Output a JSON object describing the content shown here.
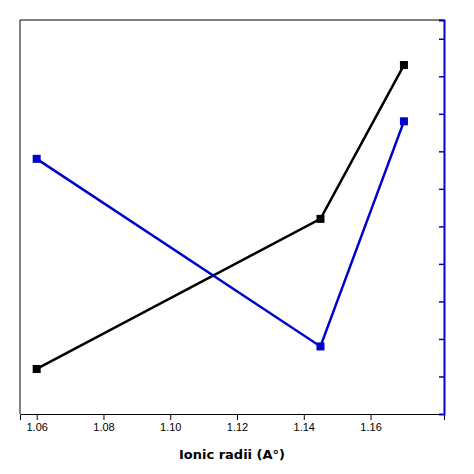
{
  "chart_data": {
    "type": "line",
    "x": [
      1.06,
      1.145,
      1.17
    ],
    "series": [
      {
        "color": "#000000",
        "values": [
          0.12,
          0.52,
          0.93
        ]
      },
      {
        "color": "#0000cc",
        "values": [
          0.68,
          0.18,
          0.78
        ]
      }
    ],
    "x_label": "Ionic radii (A°)",
    "xlim": [
      1.055,
      1.182
    ],
    "xticks": [
      1.06,
      1.08,
      {
        "value": 1.1,
        "label": "1.10"
      },
      1.12,
      1.14,
      1.16
    ],
    "ylim": [
      0.0,
      1.05
    ],
    "y2lim": [
      0.0,
      1.05
    ],
    "y2ticks": [
      0.1,
      0.2,
      0.3,
      0.4,
      0.5,
      0.6,
      0.7,
      0.8,
      0.9,
      1.0
    ],
    "marker": "square",
    "tick_labels": "x"
  }
}
